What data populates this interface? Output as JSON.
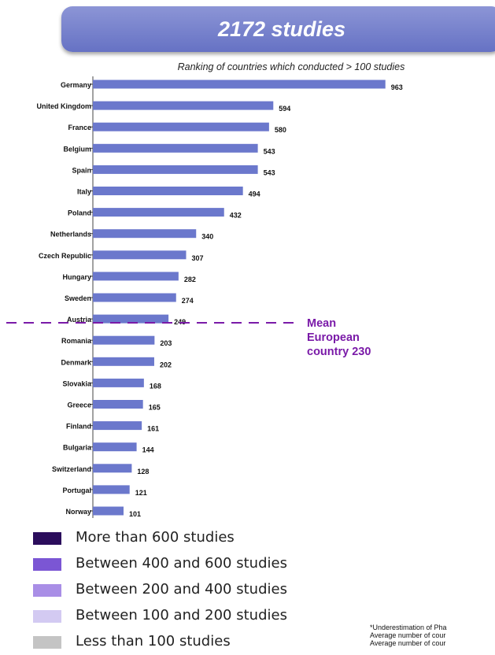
{
  "banner": {
    "title": "2172 studies"
  },
  "chart_data": {
    "type": "bar",
    "orientation": "horizontal",
    "title": "2172 studies",
    "subtitle": "Ranking of countries which conducted > 100 studies",
    "categories": [
      "Germany",
      "United Kingdom",
      "France",
      "Belgium",
      "Spain",
      "Italy",
      "Poland",
      "Netherlands",
      "Czech Republic",
      "Hungary",
      "Sweden",
      "Austria",
      "Romania",
      "Denmark",
      "Slovakia",
      "Greece",
      "Finland",
      "Bulgaria",
      "Switzerland",
      "Portugal",
      "Norway"
    ],
    "values": [
      963,
      594,
      580,
      543,
      543,
      494,
      432,
      340,
      307,
      282,
      274,
      249,
      203,
      202,
      168,
      165,
      161,
      144,
      128,
      121,
      101
    ],
    "bar_color": "#6b78cc",
    "reference_line": {
      "value": 230,
      "label": [
        "Mean",
        "European",
        "country 230"
      ],
      "color": "#7a1aa8"
    },
    "grid": false,
    "legend_position": "bottom-left"
  },
  "legend": {
    "items": [
      {
        "label": "More than 600 studies",
        "color": "#2b0d5c"
      },
      {
        "label": "Between 400 and 600 studies",
        "color": "#7b56d4"
      },
      {
        "label": "Between 200 and 400 studies",
        "color": "#a98ee6"
      },
      {
        "label": "Between 100 and 200 studies",
        "color": "#d3caf2"
      },
      {
        "label": "Less than 100 studies",
        "color": "#c4c4c4"
      }
    ]
  },
  "footnote": {
    "lines": [
      "*Underestimation of Pha",
      "Average number of cour",
      "Average number of cour"
    ]
  }
}
